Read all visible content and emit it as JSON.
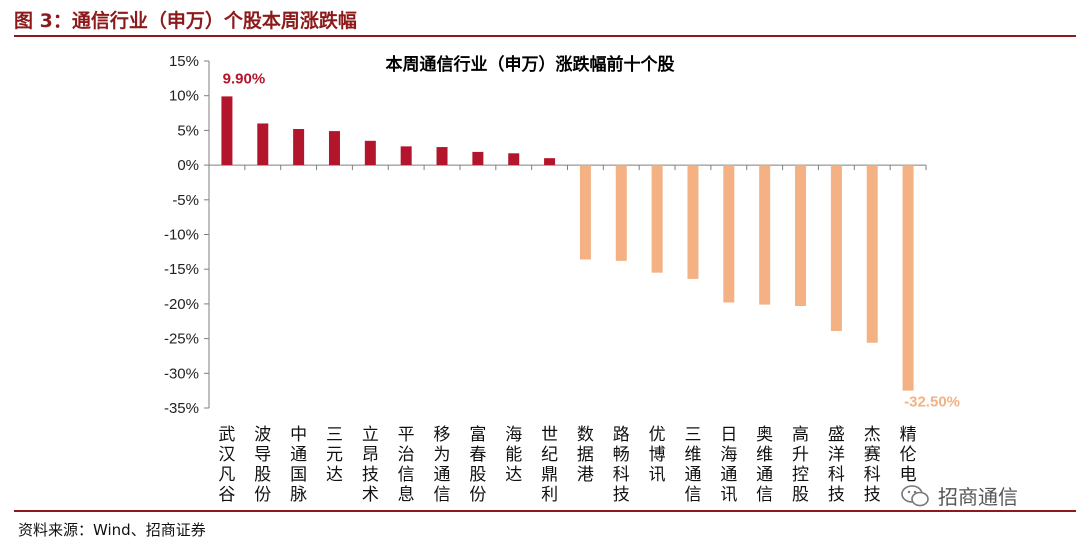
{
  "figure": {
    "title": "图 3：通信行业（申万）个股本周涨跌幅",
    "source": "资料来源：Wind、招商证券",
    "watermark": "招商通信"
  },
  "colors": {
    "brand": "#8c1a1a",
    "positive_bar": "#b3162c",
    "negative_bar": "#f4b183",
    "axis": "#7f7f7f"
  },
  "chart_data": {
    "type": "bar",
    "title": "本周通信行业（申万）涨跌幅前十个股",
    "categories": [
      "武汉凡谷",
      "波导股份",
      "中通国脉",
      "三元达",
      "立昂技术",
      "平治信息",
      "移为通信",
      "富春股份",
      "海能达",
      "世纪鼎利",
      "数据港",
      "路畅科技",
      "优博讯",
      "三维通信",
      "日海通讯",
      "奥维通信",
      "高升控股",
      "盛洋科技",
      "杰赛科技",
      "精伦电"
    ],
    "values": [
      9.9,
      6.0,
      5.2,
      4.9,
      3.5,
      2.7,
      2.6,
      1.9,
      1.7,
      1.0,
      -13.6,
      -13.8,
      -15.5,
      -16.4,
      -19.8,
      -20.1,
      -20.3,
      -23.9,
      -25.6,
      -32.5
    ],
    "yticks": [
      "15%",
      "10%",
      "5%",
      "0%",
      "-5%",
      "-10%",
      "-15%",
      "-20%",
      "-25%",
      "-30%",
      "-35%"
    ],
    "ylim": [
      -35,
      15
    ],
    "xlabel": "",
    "ylabel": "",
    "grid": false,
    "annotations": [
      {
        "index": 0,
        "text": "9.90%"
      },
      {
        "index": 19,
        "text": "-32.50%"
      }
    ]
  }
}
